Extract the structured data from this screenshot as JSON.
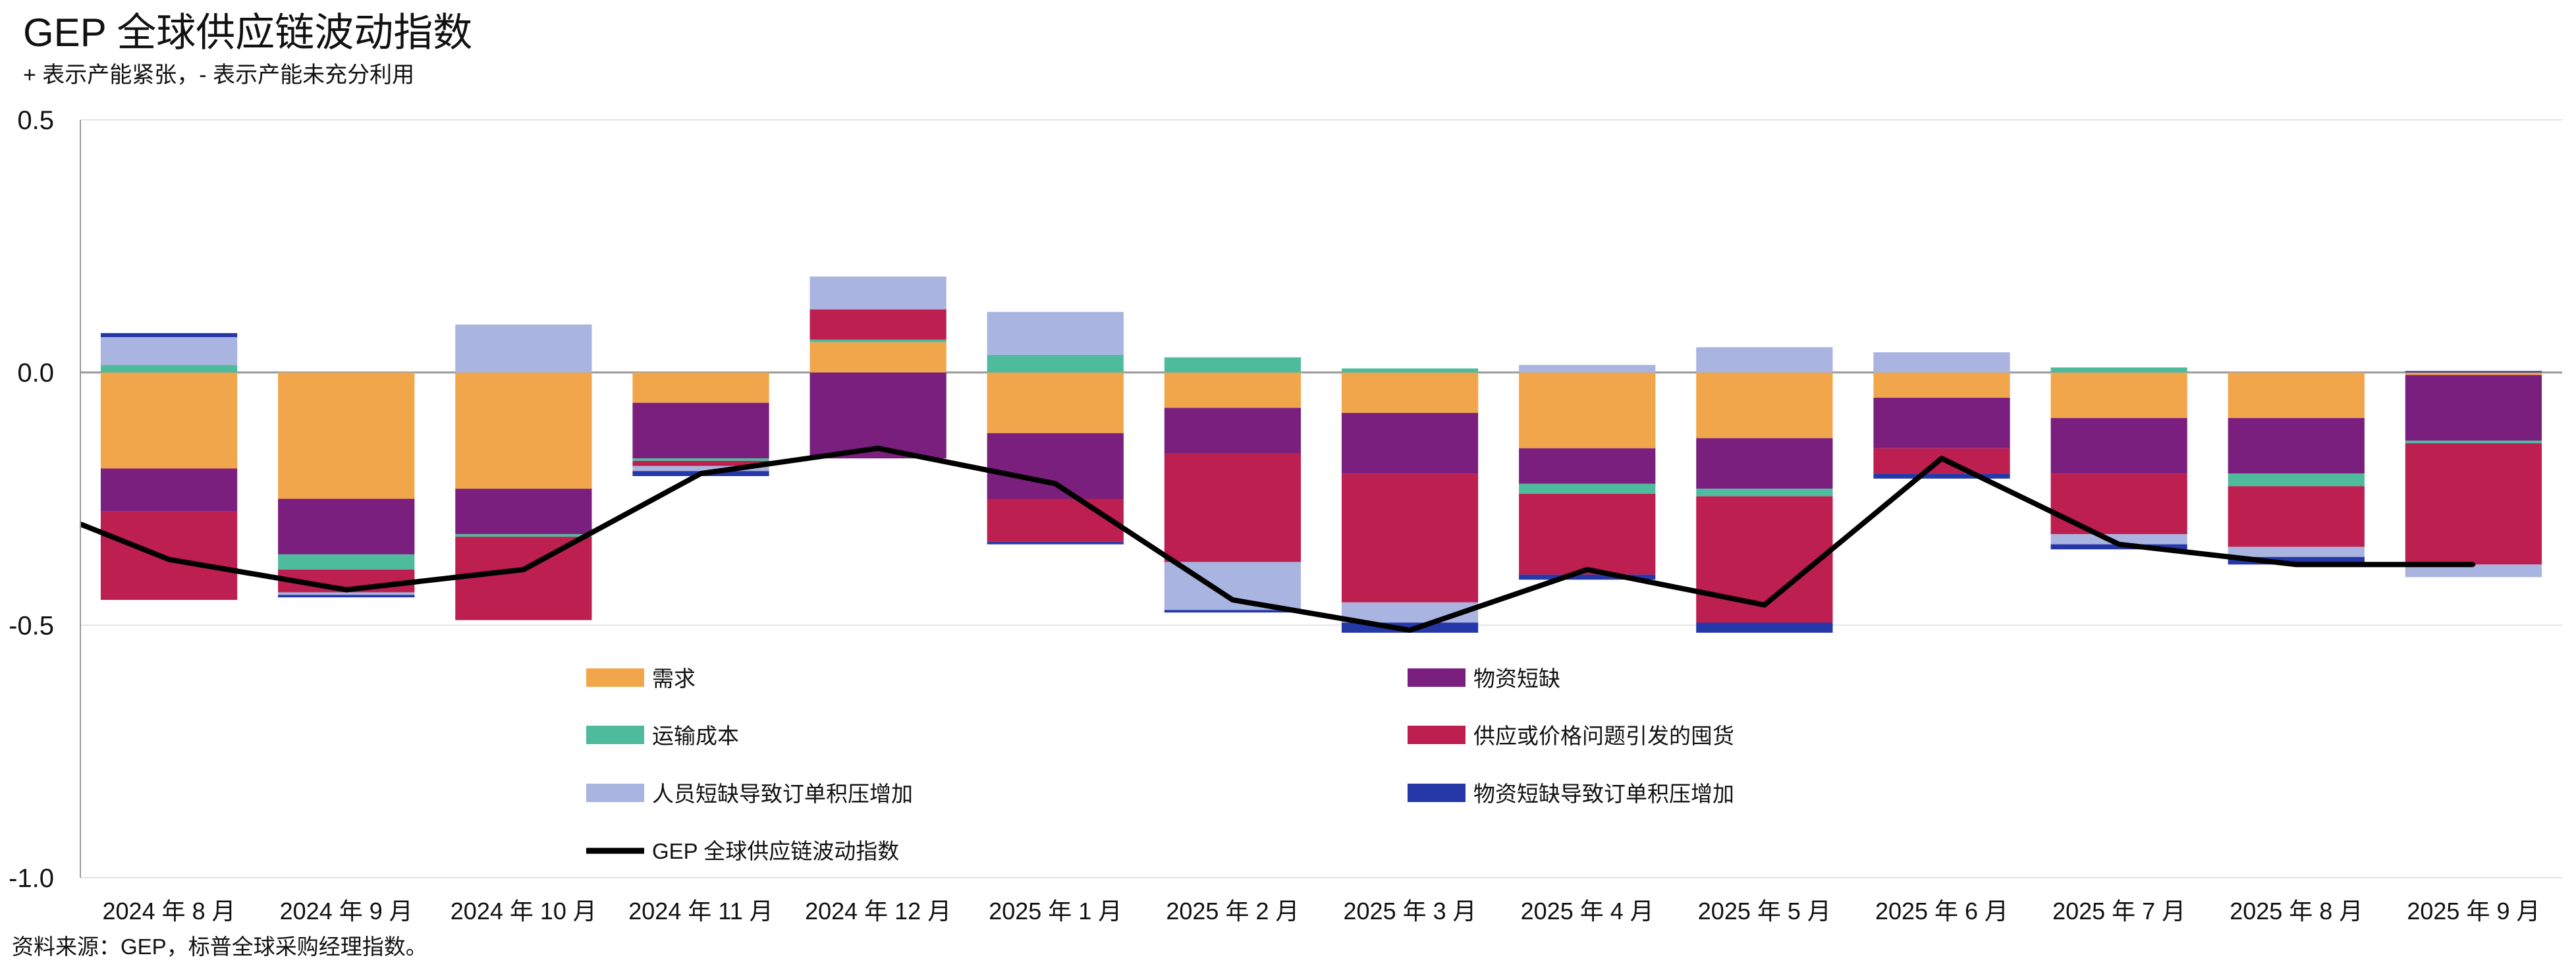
{
  "chart_data": {
    "type": "bar",
    "title": "GEP 全球供应链波动指数",
    "subtitle": "+ 表示产能紧张，- 表示产能未充分利用",
    "source": "资料来源：GEP，标普全球采购经理指数。",
    "ylim": [
      -1.0,
      0.5
    ],
    "yticks": [
      0.5,
      0.0,
      -0.5,
      -1.0
    ],
    "ytick_labels": [
      "0.5",
      "0.0",
      "-0.5",
      "-1.0"
    ],
    "grid": true,
    "stacked": true,
    "legend_position": "bottom-inside",
    "categories": [
      "2024 年 8 月",
      "2024 年 9 月",
      "2024 年 10 月",
      "2024 年 11 月",
      "2024 年 12 月",
      "2025 年 1 月",
      "2025 年 2 月",
      "2025 年 3 月",
      "2025 年 4 月",
      "2025 年 5 月",
      "2025 年 6 月",
      "2025 年 7 月",
      "2025 年 8 月",
      "2025 年 9 月"
    ],
    "series": [
      {
        "name": "需求",
        "color": "#f2a64b",
        "values": [
          -0.19,
          -0.25,
          -0.23,
          -0.06,
          0.06,
          -0.12,
          -0.07,
          -0.08,
          -0.15,
          -0.13,
          -0.05,
          -0.09,
          -0.09,
          -0.005
        ]
      },
      {
        "name": "物资短缺",
        "color": "#7a1f7e",
        "values": [
          -0.085,
          -0.11,
          -0.09,
          -0.11,
          -0.17,
          -0.13,
          -0.09,
          -0.12,
          -0.07,
          -0.1,
          -0.1,
          -0.11,
          -0.11,
          -0.13
        ]
      },
      {
        "name": "运输成本",
        "color": "#4fbb9d",
        "values": [
          0.015,
          -0.03,
          -0.005,
          -0.005,
          0.005,
          0.035,
          0.03,
          0.008,
          -0.02,
          -0.015,
          0.0,
          0.01,
          -0.025,
          -0.005
        ]
      },
      {
        "name": "供应或价格问题引发的囤货",
        "color": "#bc1f50",
        "values": [
          -0.175,
          -0.045,
          -0.165,
          -0.01,
          0.06,
          -0.085,
          -0.215,
          -0.255,
          -0.16,
          -0.25,
          -0.05,
          -0.12,
          -0.12,
          -0.24
        ]
      },
      {
        "name": "人员短缺导致订单积压增加",
        "color": "#aab4e0",
        "values": [
          0.055,
          -0.005,
          0.095,
          -0.01,
          0.065,
          0.085,
          -0.095,
          -0.04,
          0.015,
          0.05,
          0.04,
          -0.02,
          -0.02,
          -0.025
        ]
      },
      {
        "name": "物资短缺导致订单积压增加",
        "color": "#2638a8",
        "values": [
          0.008,
          -0.005,
          0.0,
          -0.01,
          0.0,
          -0.005,
          -0.005,
          -0.02,
          -0.01,
          -0.02,
          -0.01,
          -0.01,
          -0.015,
          0.003
        ]
      }
    ],
    "line": {
      "name": "GEP 全球供应链波动指数",
      "color": "#000000",
      "values": [
        -0.37,
        -0.43,
        -0.39,
        -0.2,
        -0.15,
        -0.22,
        -0.45,
        -0.51,
        -0.39,
        -0.46,
        -0.17,
        -0.34,
        -0.38,
        -0.38
      ]
    }
  }
}
